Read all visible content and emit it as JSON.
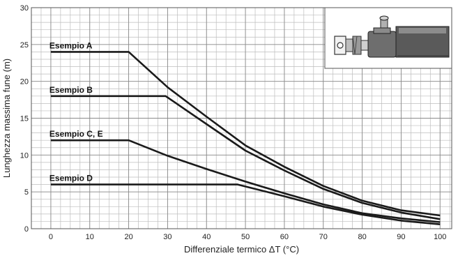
{
  "chart_data": {
    "type": "line",
    "xlabel": "Differenziale termico ΔT (°C)",
    "ylabel": "Lunghezza massima fune (m)",
    "xlim": [
      -5,
      103
    ],
    "ylim": [
      0,
      30
    ],
    "x_ticks": [
      0,
      10,
      20,
      30,
      40,
      50,
      60,
      70,
      80,
      90,
      100
    ],
    "y_ticks": [
      0,
      5,
      10,
      15,
      20,
      25,
      30
    ],
    "grid": true,
    "series": [
      {
        "name": "Esempio A",
        "x": [
          0,
          20,
          30,
          40,
          50,
          60,
          70,
          80,
          90,
          100
        ],
        "y": [
          24,
          24,
          19.2,
          15.2,
          11.3,
          8.4,
          5.8,
          3.8,
          2.5,
          1.8
        ]
      },
      {
        "name": "Esempio B",
        "x": [
          0,
          29.5,
          40,
          50,
          60,
          70,
          80,
          90,
          100
        ],
        "y": [
          18,
          18,
          14.2,
          10.6,
          7.9,
          5.4,
          3.5,
          2.2,
          1.3
        ]
      },
      {
        "name": "Esempio C, E",
        "x": [
          0,
          20,
          30,
          40,
          50,
          60,
          70,
          80,
          90,
          100
        ],
        "y": [
          12,
          12,
          9.9,
          8.1,
          6.4,
          4.8,
          3.3,
          2.1,
          1.4,
          0.9
        ]
      },
      {
        "name": "Esempio D",
        "x": [
          0,
          48,
          60,
          70,
          80,
          90,
          100
        ],
        "y": [
          6,
          6,
          4.4,
          3.0,
          1.9,
          1.1,
          0.6
        ]
      }
    ]
  }
}
